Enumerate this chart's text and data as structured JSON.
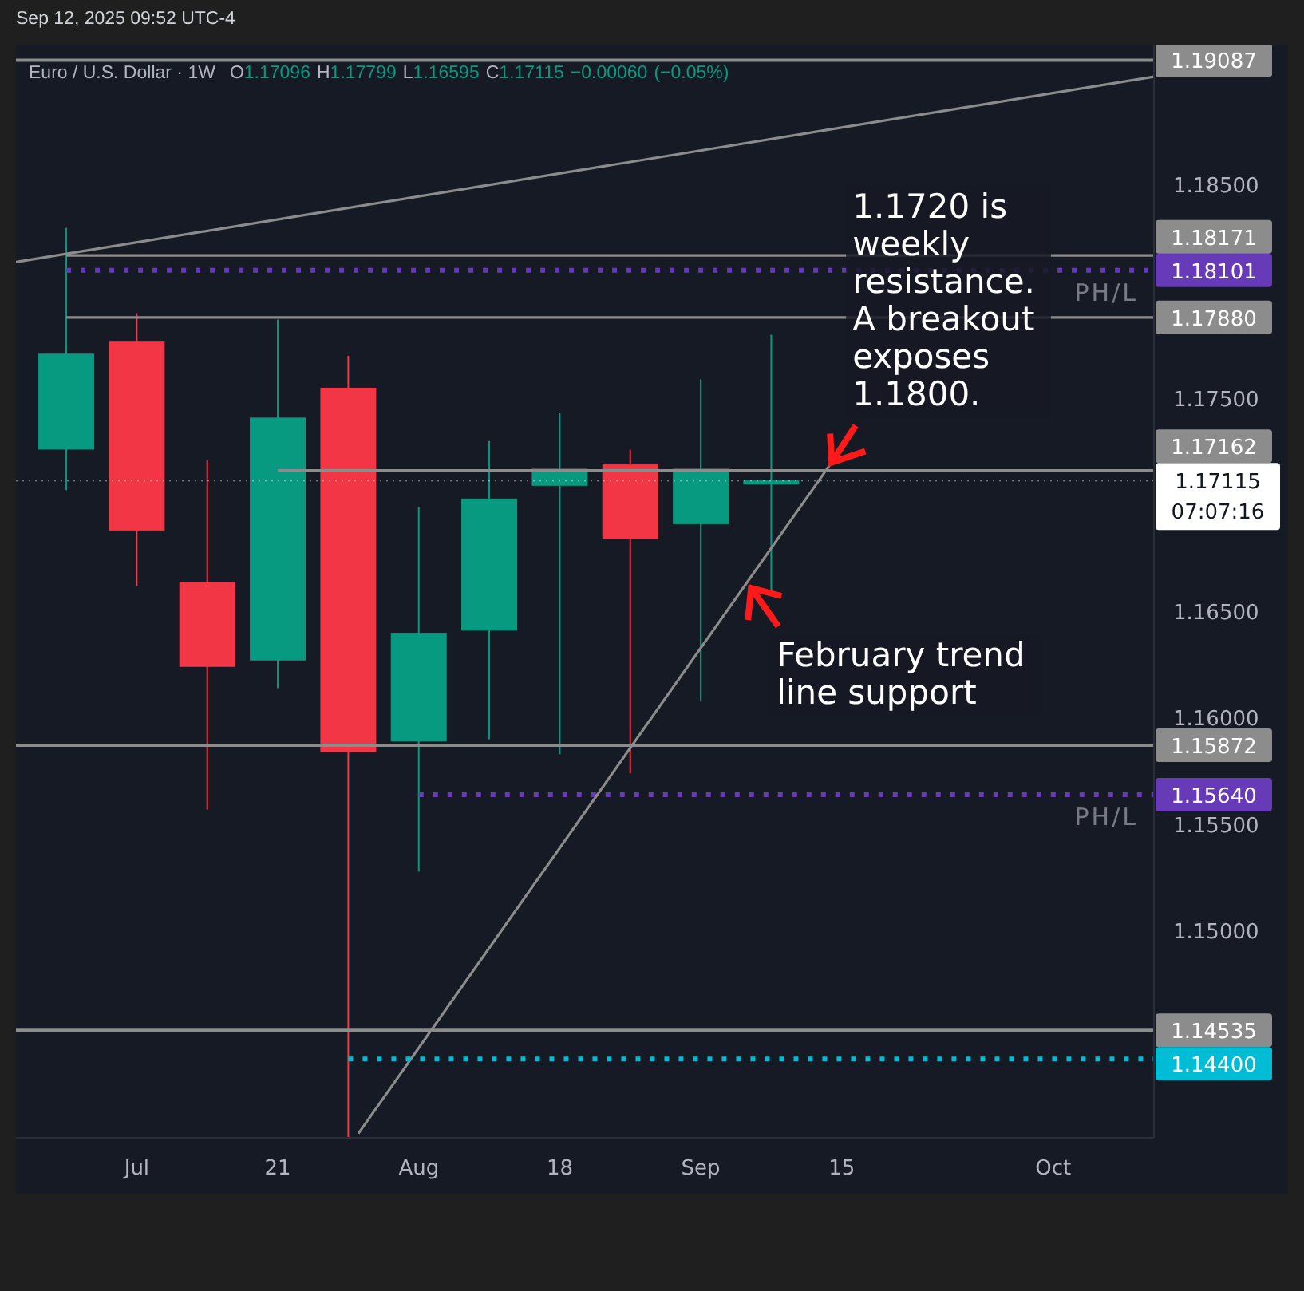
{
  "chart_data": {
    "type": "candlestick",
    "title": "Euro / U.S. Dollar · 1W",
    "subtitle": "O1.17096 H1.17799 L1.16595 C1.17115 −0.00060 (−0.05%)",
    "x": [
      "2025-06-30",
      "2025-07-07",
      "2025-07-14",
      "2025-07-21",
      "2025-07-28",
      "2025-08-04",
      "2025-08-11",
      "2025-08-18",
      "2025-08-25",
      "2025-09-01",
      "2025-09-08"
    ],
    "ohlc": [
      [
        1.1726,
        1.183,
        1.1707,
        1.1771
      ],
      [
        1.1777,
        1.179,
        1.1662,
        1.1688
      ],
      [
        1.1664,
        1.1721,
        1.1557,
        1.1624
      ],
      [
        1.1627,
        1.1787,
        1.1614,
        1.1741
      ],
      [
        1.1755,
        1.177,
        1.1403,
        1.1584
      ],
      [
        1.1589,
        1.1699,
        1.1528,
        1.164
      ],
      [
        1.1641,
        1.173,
        1.159,
        1.1703
      ],
      [
        1.1709,
        1.1743,
        1.1583,
        1.1717
      ],
      [
        1.1719,
        1.1726,
        1.1574,
        1.1684
      ],
      [
        1.1691,
        1.1759,
        1.1608,
        1.1717
      ],
      [
        1.17096,
        1.17799,
        1.16595,
        1.17115
      ]
    ],
    "colors": [
      "#089981",
      "#f23645",
      "#f23645",
      "#089981",
      "#f23645",
      "#089981",
      "#089981",
      "#089981",
      "#f23645",
      "#089981",
      "#089981"
    ],
    "xlim": [
      "2025-06-25",
      "2025-10-16"
    ],
    "xticks": [
      {
        "value": "2025-07-07",
        "label": "Jul"
      },
      {
        "value": "2025-07-21",
        "label": "21"
      },
      {
        "value": "2025-08-04",
        "label": "Aug"
      },
      {
        "value": "2025-08-18",
        "label": "18"
      },
      {
        "value": "2025-09-01",
        "label": "Sep"
      },
      {
        "value": "2025-09-15",
        "label": "15"
      },
      {
        "value": "2025-10-06",
        "label": "Oct"
      }
    ],
    "ylim": [
      1.1403,
      1.1916
    ],
    "yticks": [
      {
        "value": 1.15,
        "label": "1.15000"
      },
      {
        "value": 1.155,
        "label": "1.15500"
      },
      {
        "value": 1.16,
        "label": "1.16000"
      },
      {
        "value": 1.165,
        "label": "1.16500"
      },
      {
        "value": 1.175,
        "label": "1.17500"
      },
      {
        "value": 1.185,
        "label": "1.18500"
      }
    ],
    "series": [
      {
        "type": "line",
        "name": "PH/L",
        "color": "#673ab7",
        "line_style": "dotted",
        "x": [
          "2025-06-30",
          "2025-10-16"
        ],
        "values": [
          1.18101,
          1.18101
        ],
        "value_labels": [
          null,
          "1.18101"
        ]
      },
      {
        "type": "line",
        "name": "PH/L",
        "color": "#673ab7",
        "line_style": "dotted",
        "x": [
          "2025-08-04",
          "2025-10-16"
        ],
        "values": [
          1.1564,
          1.1564
        ],
        "value_labels": [
          null,
          "1.15640"
        ]
      },
      {
        "type": "line",
        "color": "#8c8c8c",
        "x": [
          "2025-06-25",
          "2025-10-16"
        ],
        "values": [
          1.1814,
          1.1901
        ]
      },
      {
        "type": "line",
        "color": "#8c8c8c",
        "x": [
          "2025-07-29",
          "2025-09-14"
        ],
        "values": [
          1.1405,
          1.172
        ]
      },
      {
        "type": "line",
        "color": "#8c8c8c",
        "x": [
          "2025-06-30",
          "2025-10-16"
        ],
        "values": [
          1.18171,
          1.18171
        ],
        "value_labels": [
          null,
          "1.18171"
        ]
      },
      {
        "type": "line",
        "color": "#8c8c8c",
        "x": [
          "2025-06-30",
          "2025-10-16"
        ],
        "values": [
          1.1788,
          1.1788
        ],
        "value_labels": [
          null,
          "1.17880"
        ]
      },
      {
        "type": "line",
        "color": "#8c8c8c",
        "x": [
          "2025-07-21",
          "2025-10-16"
        ],
        "values": [
          1.17162,
          1.17162
        ],
        "value_labels": [
          null,
          "1.17162"
        ]
      },
      {
        "type": "line",
        "color": "#00bcd4",
        "line_style": "dotted",
        "x": [
          "2025-07-28",
          "2025-10-16"
        ],
        "values": [
          1.144,
          1.144
        ],
        "value_labels": [
          null,
          "1.14400"
        ]
      }
    ],
    "ref_lines": [
      {
        "axis": "y",
        "value": 1.19087,
        "label": "1.19087",
        "color": "#8c8c8c"
      },
      {
        "axis": "y",
        "value": 1.15872,
        "label": "1.15872",
        "color": "#8c8c8c"
      },
      {
        "axis": "y",
        "value": 1.14535,
        "label": "1.14535",
        "color": "#8c8c8c"
      },
      {
        "axis": "y",
        "value": 1.17115,
        "label": "1.17115",
        "color": "#ffffff",
        "line_style": "dotted"
      }
    ],
    "annotations": [
      "Sep 12, 2025 09:52 UTC-4",
      "07:07:16",
      {
        "text": "1.1720 is weekly resistance. A breakout exposes 1.1800.",
        "x": "2025-09-14",
        "y": 1.172
      },
      {
        "text": "February trend line support",
        "x": "2025-09-06",
        "y": 1.1661
      }
    ]
  }
}
